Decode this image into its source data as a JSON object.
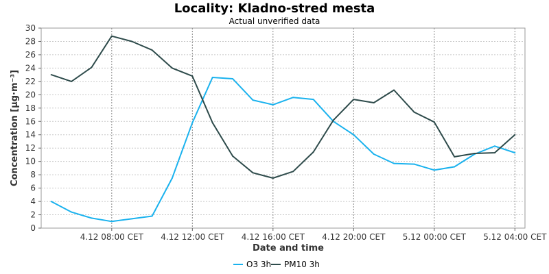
{
  "chart_data": {
    "type": "line",
    "title": "Locality: Kladno-stred mesta",
    "subtitle": "Actual unverified data",
    "xlabel": "Date and time",
    "ylabel": "Concentration [µg·m⁻³]",
    "ylim": [
      0,
      30
    ],
    "y_ticks": [
      0,
      2,
      4,
      6,
      8,
      10,
      12,
      14,
      16,
      18,
      20,
      22,
      24,
      26,
      28,
      30
    ],
    "x_unit": "hour offset from 4.12 04:00 CET",
    "x_range": [
      3.5,
      27.5
    ],
    "x_ticks": [
      {
        "x": 7,
        "label": "4.12 08:00 CET"
      },
      {
        "x": 11,
        "label": "4.12 12:00 CET"
      },
      {
        "x": 15,
        "label": "4.12 16:00 CET"
      },
      {
        "x": 19,
        "label": "4.12 20:00 CET"
      },
      {
        "x": 23,
        "label": "5.12 00:00 CET"
      },
      {
        "x": 27,
        "label": "5.12 04:00 CET"
      }
    ],
    "x": [
      4,
      5,
      6,
      7,
      8,
      9,
      10,
      11,
      12,
      13,
      14,
      15,
      16,
      17,
      18,
      19,
      20,
      21,
      22,
      23,
      24,
      25,
      26,
      27
    ],
    "series": [
      {
        "name": "O3 3h",
        "color": "#1ab2ee",
        "values": [
          4.0,
          2.4,
          1.5,
          1.0,
          1.4,
          1.8,
          7.5,
          15.8,
          22.6,
          22.4,
          19.2,
          18.5,
          19.6,
          19.3,
          16.0,
          14.0,
          11.1,
          9.7,
          9.6,
          8.7,
          9.2,
          11.1,
          12.3,
          11.3
        ]
      },
      {
        "name": "PM10 3h",
        "color": "#2e4b4b",
        "values": [
          23.0,
          22.0,
          24.1,
          28.8,
          28.0,
          26.7,
          24.0,
          22.8,
          15.8,
          10.8,
          8.3,
          7.5,
          8.5,
          11.4,
          16.2,
          19.3,
          18.8,
          20.7,
          17.4,
          15.9,
          10.7,
          11.2,
          11.3,
          14.0
        ]
      }
    ],
    "grid": true,
    "legend": "bottom-center"
  }
}
